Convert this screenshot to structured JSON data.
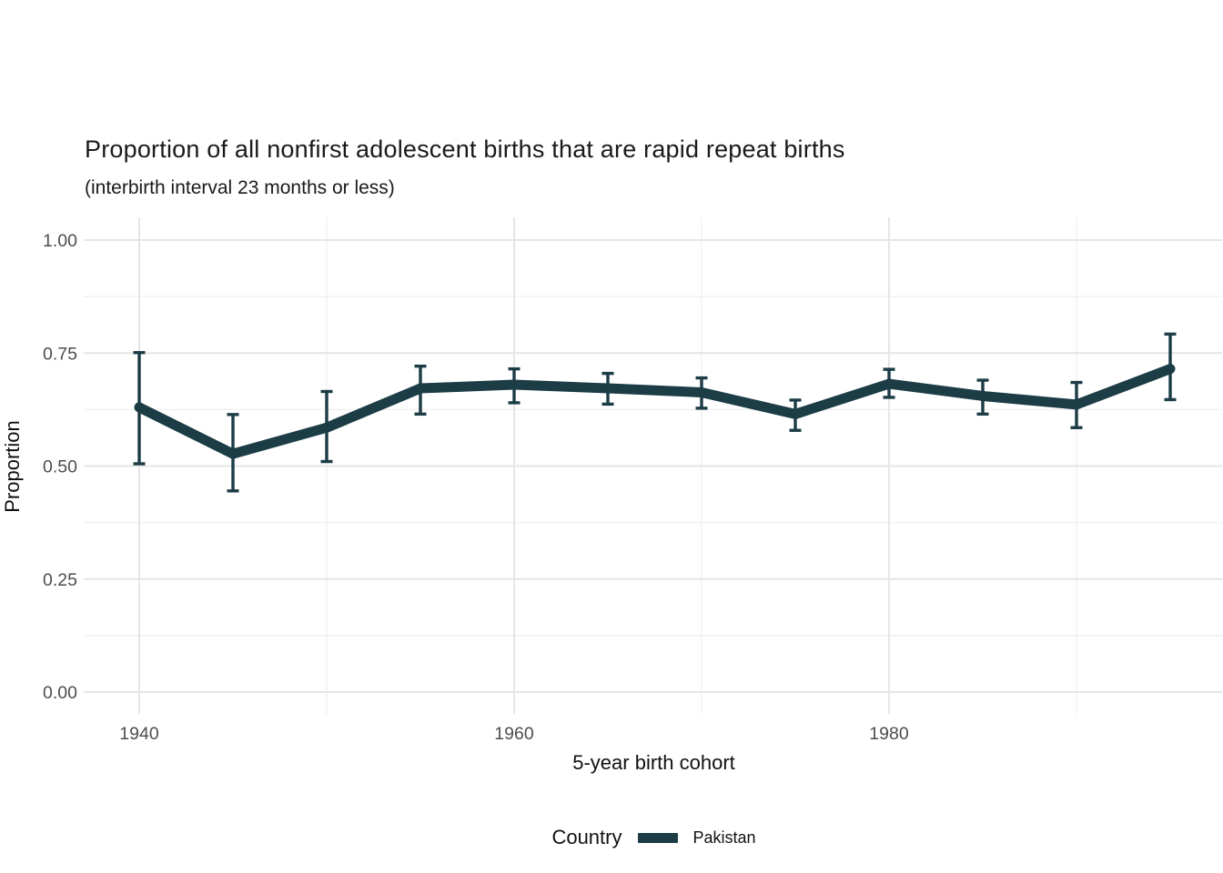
{
  "chart_data": {
    "type": "line",
    "title": "Proportion of all nonfirst adolescent births that are rapid repeat births",
    "subtitle": "(interbirth interval 23 months or less)",
    "xlabel": "5-year birth cohort",
    "ylabel": "Proportion",
    "legend_title": "Country",
    "legend_position": "bottom",
    "grid": "major+minor",
    "xlim": [
      1937.25,
      1997.75
    ],
    "ylim": [
      -0.05,
      1.05
    ],
    "x_ticks": [
      {
        "label": "1940",
        "value": 1940
      },
      {
        "label": "1960",
        "value": 1960
      },
      {
        "label": "1980",
        "value": 1980
      }
    ],
    "y_ticks": [
      {
        "label": "0.00",
        "value": 0.0
      },
      {
        "label": "0.25",
        "value": 0.25
      },
      {
        "label": "0.50",
        "value": 0.5
      },
      {
        "label": "0.75",
        "value": 0.75
      },
      {
        "label": "1.00",
        "value": 1.0
      }
    ],
    "x_minor_gridlines": [
      1950,
      1970,
      1990
    ],
    "y_minor_gridlines": [
      0.125,
      0.375,
      0.625,
      0.875
    ],
    "colors": {
      "series": "#1c3c46",
      "grid_major": "#e6e6e6",
      "grid_minor": "#f1f1f1",
      "tick_label": "#4d4d4d"
    },
    "series": [
      {
        "name": "Pakistan",
        "color": "#1c3c46",
        "x": [
          1940,
          1945,
          1950,
          1955,
          1960,
          1965,
          1970,
          1975,
          1980,
          1985,
          1990,
          1995
        ],
        "y": [
          0.63,
          0.527,
          0.585,
          0.672,
          0.68,
          0.672,
          0.663,
          0.615,
          0.682,
          0.655,
          0.636,
          0.715
        ],
        "ci_low": [
          0.505,
          0.445,
          0.51,
          0.615,
          0.64,
          0.637,
          0.628,
          0.579,
          0.652,
          0.615,
          0.585,
          0.647
        ],
        "ci_high": [
          0.751,
          0.614,
          0.665,
          0.721,
          0.715,
          0.705,
          0.695,
          0.646,
          0.714,
          0.69,
          0.685,
          0.792
        ]
      }
    ]
  }
}
